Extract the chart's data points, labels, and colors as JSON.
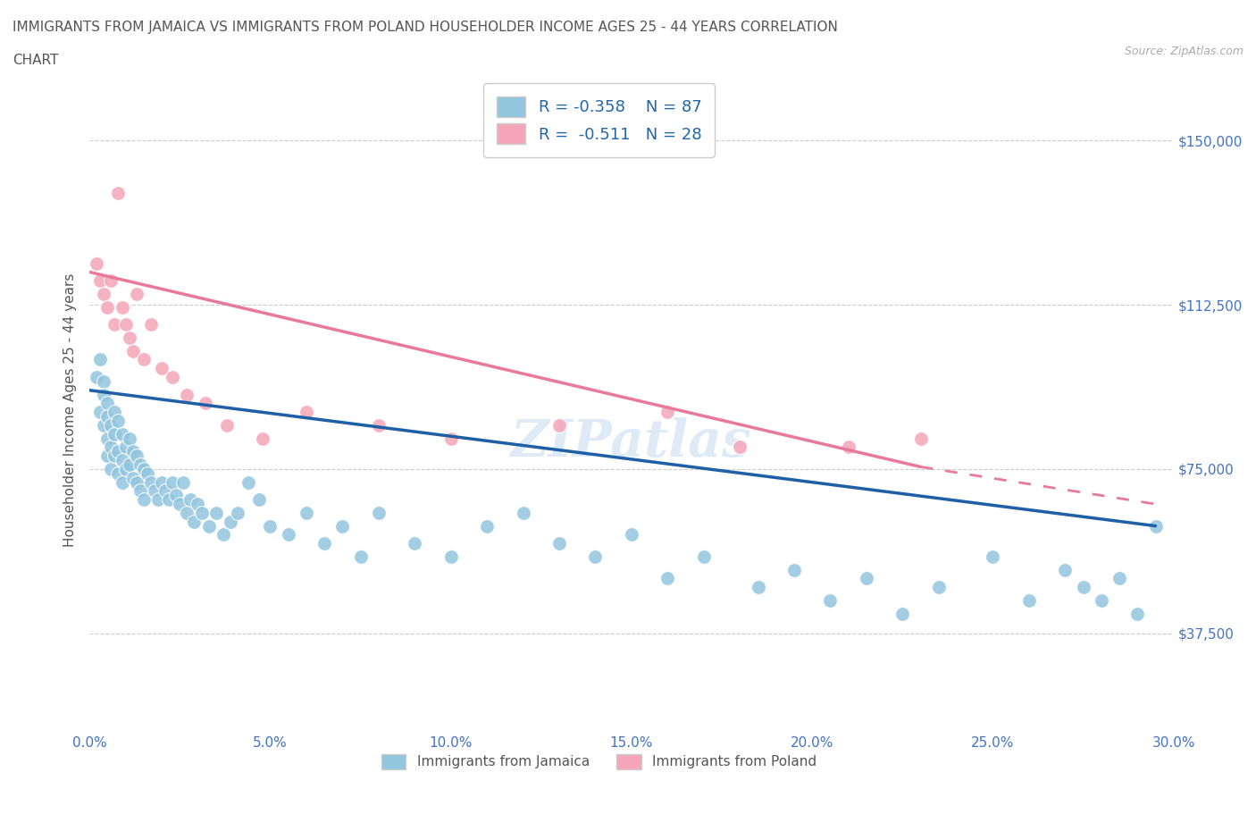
{
  "title_line1": "IMMIGRANTS FROM JAMAICA VS IMMIGRANTS FROM POLAND HOUSEHOLDER INCOME AGES 25 - 44 YEARS CORRELATION",
  "title_line2": "CHART",
  "source_text": "Source: ZipAtlas.com",
  "ylabel": "Householder Income Ages 25 - 44 years",
  "xlim": [
    0.0,
    0.3
  ],
  "xtick_labels": [
    "0.0%",
    "5.0%",
    "10.0%",
    "15.0%",
    "20.0%",
    "25.0%",
    "30.0%"
  ],
  "xtick_values": [
    0.0,
    0.05,
    0.1,
    0.15,
    0.2,
    0.25,
    0.3
  ],
  "ytick_labels": [
    "$37,500",
    "$75,000",
    "$112,500",
    "$150,000"
  ],
  "ytick_values": [
    37500,
    75000,
    112500,
    150000
  ],
  "ylim": [
    15000,
    162000
  ],
  "jamaica_color": "#92C5DE",
  "poland_color": "#F4A6B8",
  "jamaica_line_color": "#1F5FA6",
  "poland_line_color": "#E8799A",
  "jamaica_R": -0.358,
  "jamaica_N": 87,
  "poland_R": -0.511,
  "poland_N": 28,
  "legend_label_jamaica": "Immigrants from Jamaica",
  "legend_label_poland": "Immigrants from Poland",
  "watermark": "ZIPatlas",
  "background_color": "#ffffff",
  "grid_color": "#cccccc",
  "title_color": "#555555",
  "axis_color": "#4472C4",
  "jamaica_x": [
    0.002,
    0.003,
    0.003,
    0.004,
    0.004,
    0.004,
    0.005,
    0.005,
    0.005,
    0.005,
    0.006,
    0.006,
    0.006,
    0.007,
    0.007,
    0.007,
    0.008,
    0.008,
    0.008,
    0.009,
    0.009,
    0.009,
    0.01,
    0.01,
    0.011,
    0.011,
    0.012,
    0.012,
    0.013,
    0.013,
    0.014,
    0.014,
    0.015,
    0.015,
    0.016,
    0.017,
    0.018,
    0.019,
    0.02,
    0.021,
    0.022,
    0.023,
    0.024,
    0.025,
    0.026,
    0.027,
    0.028,
    0.029,
    0.03,
    0.031,
    0.033,
    0.035,
    0.037,
    0.039,
    0.041,
    0.044,
    0.047,
    0.05,
    0.055,
    0.06,
    0.065,
    0.07,
    0.075,
    0.08,
    0.09,
    0.1,
    0.11,
    0.12,
    0.13,
    0.14,
    0.15,
    0.16,
    0.17,
    0.185,
    0.195,
    0.205,
    0.215,
    0.225,
    0.235,
    0.25,
    0.26,
    0.27,
    0.275,
    0.28,
    0.285,
    0.29,
    0.295
  ],
  "jamaica_y": [
    96000,
    100000,
    88000,
    95000,
    85000,
    92000,
    90000,
    82000,
    87000,
    78000,
    85000,
    80000,
    75000,
    88000,
    83000,
    78000,
    86000,
    79000,
    74000,
    83000,
    77000,
    72000,
    80000,
    75000,
    82000,
    76000,
    79000,
    73000,
    78000,
    72000,
    76000,
    70000,
    75000,
    68000,
    74000,
    72000,
    70000,
    68000,
    72000,
    70000,
    68000,
    72000,
    69000,
    67000,
    72000,
    65000,
    68000,
    63000,
    67000,
    65000,
    62000,
    65000,
    60000,
    63000,
    65000,
    72000,
    68000,
    62000,
    60000,
    65000,
    58000,
    62000,
    55000,
    65000,
    58000,
    55000,
    62000,
    65000,
    58000,
    55000,
    60000,
    50000,
    55000,
    48000,
    52000,
    45000,
    50000,
    42000,
    48000,
    55000,
    45000,
    52000,
    48000,
    45000,
    50000,
    42000,
    62000
  ],
  "poland_x": [
    0.002,
    0.003,
    0.004,
    0.005,
    0.006,
    0.007,
    0.008,
    0.009,
    0.01,
    0.011,
    0.012,
    0.013,
    0.015,
    0.017,
    0.02,
    0.023,
    0.027,
    0.032,
    0.038,
    0.048,
    0.06,
    0.08,
    0.1,
    0.13,
    0.16,
    0.18,
    0.21,
    0.23
  ],
  "poland_y": [
    122000,
    118000,
    115000,
    112000,
    118000,
    108000,
    138000,
    112000,
    108000,
    105000,
    102000,
    115000,
    100000,
    108000,
    98000,
    96000,
    92000,
    90000,
    85000,
    82000,
    88000,
    85000,
    82000,
    85000,
    88000,
    80000,
    80000,
    82000
  ]
}
